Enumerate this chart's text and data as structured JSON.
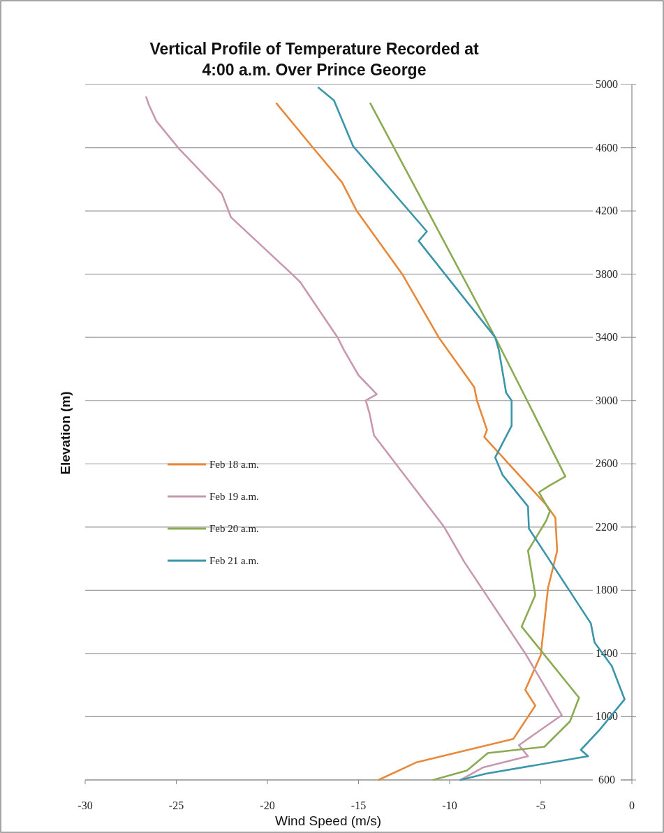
{
  "chart_data": {
    "type": "line",
    "title": "Vertical Profile of Temperature Recorded at 4:00 a.m. Over Prince George",
    "xlabel": "Wind Speed (m/s)",
    "ylabel": "Elevation (m)",
    "xlim": [
      -30,
      0
    ],
    "xticks": [
      -30,
      -25,
      -20,
      -15,
      -10,
      -5,
      0
    ],
    "ylim": [
      600,
      5000
    ],
    "yticks": [
      600,
      1000,
      1400,
      1800,
      2200,
      2600,
      3000,
      3400,
      3800,
      4200,
      4600,
      5000
    ],
    "grid": "y",
    "legend": "left",
    "line_style": "solid",
    "marker": "none",
    "series": [
      {
        "name": "Feb 18 a.m.",
        "color": "#e8883a",
        "x": [
          -19.5,
          -17.5,
          -15.9,
          -15.1,
          -12.6,
          -10.6,
          -8.65,
          -8.5,
          -7.95,
          -8.1,
          -4.7,
          -4.2,
          -4.1,
          -4.6,
          -5.0,
          -5.85,
          -5.3,
          -6.5,
          -11.85,
          -13.9
        ],
        "values": [
          4880,
          4600,
          4380,
          4200,
          3800,
          3400,
          3085,
          3000,
          2815,
          2770,
          2340,
          2260,
          2050,
          1815,
          1390,
          1170,
          1070,
          860,
          710,
          600
        ]
      },
      {
        "name": "Feb 19 a.m.",
        "color": "#c898b0",
        "x": [
          -26.65,
          -26.5,
          -26.1,
          -24.9,
          -22.5,
          -22.0,
          -18.65,
          -18.2,
          -16.15,
          -15.8,
          -15.0,
          -14.0,
          -14.6,
          -14.4,
          -14.15,
          -10.3,
          -9.2,
          -5.85,
          -3.85,
          -6.2,
          -5.7,
          -8.15,
          -9.4
        ],
        "values": [
          4920,
          4870,
          4770,
          4600,
          4310,
          4160,
          3800,
          3750,
          3400,
          3320,
          3160,
          3040,
          3000,
          2920,
          2780,
          2200,
          1980,
          1400,
          1010,
          820,
          750,
          680,
          600
        ]
      },
      {
        "name": "Feb 20 a.m.",
        "color": "#8aab52",
        "x": [
          -14.35,
          -7.5,
          -3.65,
          -4.55,
          -5.1,
          -4.5,
          -4.7,
          -5.7,
          -5.3,
          -6.05,
          -2.9,
          -3.4,
          -4.8,
          -7.9,
          -9.05,
          -10.9
        ],
        "values": [
          4880,
          3400,
          2520,
          2460,
          2420,
          2300,
          2240,
          2050,
          1770,
          1570,
          1120,
          970,
          810,
          770,
          660,
          600
        ]
      },
      {
        "name": "Feb 21 a.m.",
        "color": "#3a96a8",
        "x": [
          -17.2,
          -16.35,
          -15.3,
          -11.25,
          -11.7,
          -7.5,
          -7.3,
          -6.9,
          -6.6,
          -6.6,
          -7.5,
          -7.1,
          -5.7,
          -5.65,
          -2.25,
          -2.05,
          -1.1,
          -0.4,
          -1.75,
          -2.8,
          -2.4,
          -8.0,
          -9.4
        ],
        "values": [
          4980,
          4900,
          4610,
          4070,
          4010,
          3400,
          3320,
          3050,
          3000,
          2840,
          2640,
          2530,
          2330,
          2190,
          1590,
          1470,
          1320,
          1110,
          920,
          790,
          750,
          640,
          600
        ]
      }
    ]
  }
}
